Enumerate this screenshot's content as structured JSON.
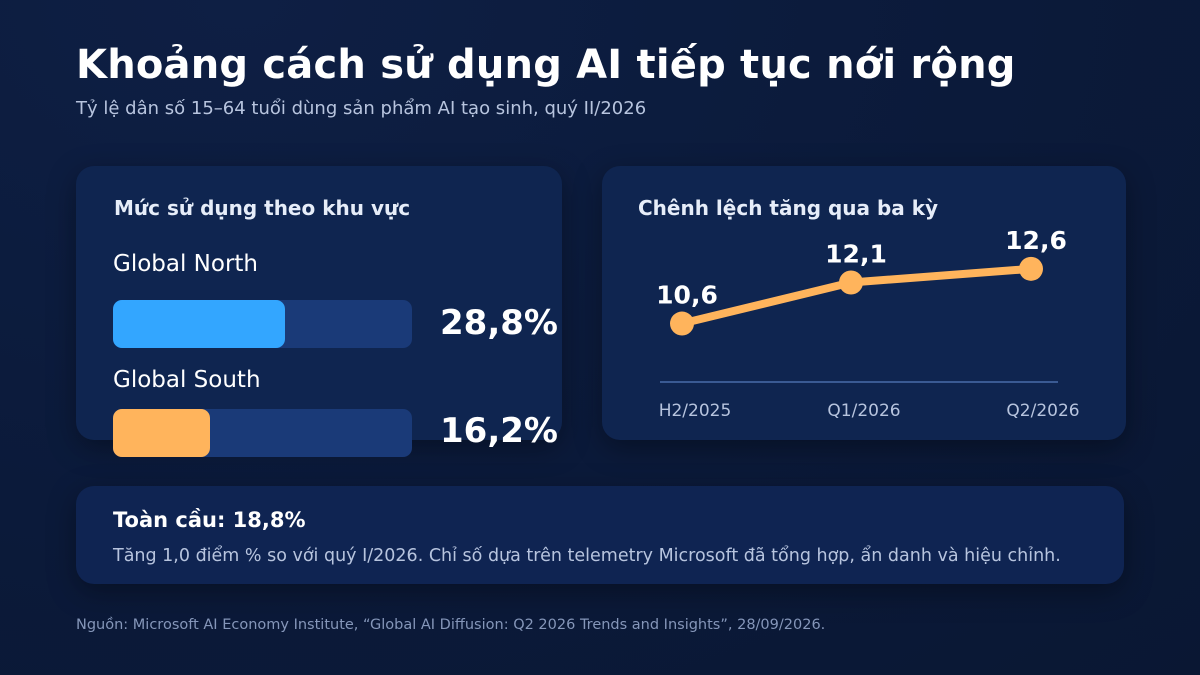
{
  "header": {
    "title": "Khoảng cách sử dụng AI tiếp tục nới rộng",
    "subtitle": "Tỷ lệ dân số 15–64 tuổi dùng sản phẩm AI tạo sinh, quý II/2026"
  },
  "colors": {
    "north": "#33a6ff",
    "south": "#ffb45c",
    "line": "#ffb45c",
    "track": "#1a3a78"
  },
  "chart_data": [
    {
      "type": "bar",
      "title": "Mức sử dụng theo khu vực",
      "orientation": "horizontal",
      "categories": [
        "Global North",
        "Global South"
      ],
      "values": [
        28.8,
        16.2
      ],
      "value_labels": [
        "28,8%",
        "16,2%"
      ],
      "xlim": [
        0,
        50
      ],
      "unit": "%"
    },
    {
      "type": "line",
      "title": "Chênh lệch tăng qua ba kỳ",
      "x": [
        "H2/2025",
        "Q1/2026",
        "Q2/2026"
      ],
      "values": [
        10.6,
        12.1,
        12.6
      ],
      "value_labels": [
        "10,6",
        "12,1",
        "12,6"
      ],
      "ylim": [
        8.5,
        13.8
      ],
      "grid": false
    }
  ],
  "summary": {
    "title": "Toàn cầu: 18,8%",
    "text": "Tăng 1,0 điểm % so với quý I/2026. Chỉ số dựa trên telemetry Microsoft đã tổng hợp, ẩn danh và hiệu chỉnh."
  },
  "source": "Nguồn: Microsoft AI Economy Institute, “Global AI Diffusion: Q2 2026 Trends and Insights”, 28/09/2026."
}
